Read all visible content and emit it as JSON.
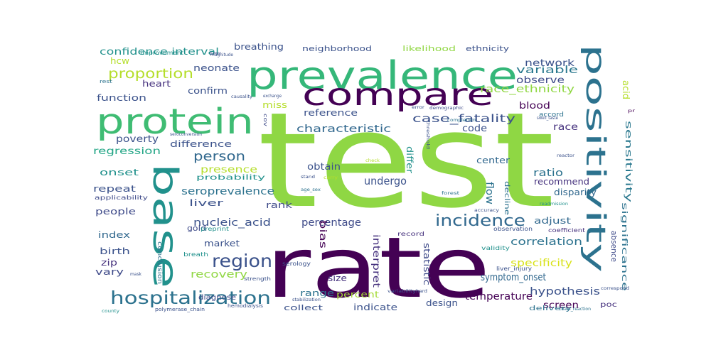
{
  "words": [
    {
      "text": "test",
      "color": "#8fd744"
    },
    {
      "text": "rate",
      "color": "#440154"
    },
    {
      "text": "prevalence",
      "color": "#35b779"
    },
    {
      "text": "compare",
      "color": "#440154"
    },
    {
      "text": "protein",
      "color": "#3fbc73"
    },
    {
      "text": "base",
      "color": "#21918c"
    },
    {
      "text": "positivity",
      "color": "#2c728e"
    },
    {
      "text": "hospitalization",
      "color": "#2c728e"
    },
    {
      "text": "region",
      "color": "#3b528b"
    },
    {
      "text": "incidence",
      "color": "#31688e"
    },
    {
      "text": "person",
      "color": "#31688e"
    },
    {
      "text": "proportion",
      "color": "#b5de2b"
    },
    {
      "text": "confidence interval",
      "color": "#21918c"
    },
    {
      "text": "race_ethnicity",
      "color": "#90d743"
    },
    {
      "text": "case_fatality",
      "color": "#3b528b"
    },
    {
      "text": "characteristic",
      "color": "#31688e"
    },
    {
      "text": "hypothesis",
      "color": "#3b528b"
    },
    {
      "text": "correlation",
      "color": "#2c728e"
    },
    {
      "text": "specificity",
      "color": "#d8e219"
    },
    {
      "text": "seroprevalence",
      "color": "#2c728e"
    },
    {
      "text": "nucleic_acid",
      "color": "#3b528b"
    },
    {
      "text": "percentage",
      "color": "#3e4a89"
    },
    {
      "text": "symptom_onset",
      "color": "#31688e"
    },
    {
      "text": "temperature",
      "color": "#440154"
    },
    {
      "text": "sensitivity",
      "color": "#2a788e"
    },
    {
      "text": "significance",
      "color": "#2c728e"
    },
    {
      "text": "variable",
      "color": "#2a788e"
    },
    {
      "text": "network",
      "color": "#3b528b"
    },
    {
      "text": "observe",
      "color": "#3e4a89"
    },
    {
      "text": "blood",
      "color": "#440154"
    },
    {
      "text": "race",
      "color": "#46327e"
    },
    {
      "text": "code",
      "color": "#3b528b"
    },
    {
      "text": "difference",
      "color": "#3b528b"
    },
    {
      "text": "poverty",
      "color": "#3b528b"
    },
    {
      "text": "regression",
      "color": "#21a585"
    },
    {
      "text": "presence",
      "color": "#b5de2b"
    },
    {
      "text": "probability",
      "color": "#21918c"
    },
    {
      "text": "onset",
      "color": "#21918c"
    },
    {
      "text": "repeat",
      "color": "#3b528b"
    },
    {
      "text": "liver",
      "color": "#3b528b"
    },
    {
      "text": "rank",
      "color": "#3e4a89"
    },
    {
      "text": "people",
      "color": "#3e4a89"
    },
    {
      "text": "index",
      "color": "#31688e"
    },
    {
      "text": "birth",
      "color": "#3b528b"
    },
    {
      "text": "vary",
      "color": "#3e4a89"
    },
    {
      "text": "zip",
      "color": "#46327e"
    },
    {
      "text": "market",
      "color": "#3b528b"
    },
    {
      "text": "recovery",
      "color": "#90d743"
    },
    {
      "text": "range",
      "color": "#2c728e"
    },
    {
      "text": "percent",
      "color": "#a5db36"
    },
    {
      "text": "indicate",
      "color": "#3b528b"
    },
    {
      "text": "design",
      "color": "#3b528b"
    },
    {
      "text": "screen",
      "color": "#440154"
    },
    {
      "text": "delivery",
      "color": "#2c728e"
    },
    {
      "text": "poc",
      "color": "#46327e"
    },
    {
      "text": "center",
      "color": "#31688e"
    },
    {
      "text": "ratio",
      "color": "#2c728e"
    },
    {
      "text": "recommend",
      "color": "#46327e"
    },
    {
      "text": "disparity",
      "color": "#31688e"
    },
    {
      "text": "adjust",
      "color": "#31688e"
    },
    {
      "text": "undergo",
      "color": "#3b528b"
    },
    {
      "text": "obtain",
      "color": "#3b528b"
    },
    {
      "text": "reference",
      "color": "#3b528b"
    },
    {
      "text": "function",
      "color": "#3b528b"
    },
    {
      "text": "confirm",
      "color": "#3b528b"
    },
    {
      "text": "heart",
      "color": "#46327e"
    },
    {
      "text": "neonate",
      "color": "#3b528b"
    },
    {
      "text": "miss",
      "color": "#b5de2b"
    },
    {
      "text": "hcw",
      "color": "#b5de2b"
    },
    {
      "text": "breathing",
      "color": "#3b528b"
    },
    {
      "text": "neighborhood",
      "color": "#3b528b"
    },
    {
      "text": "likelihood",
      "color": "#90d743"
    },
    {
      "text": "ethnicity",
      "color": "#3b528b"
    },
    {
      "text": "accord",
      "color": "#2c728e"
    },
    {
      "text": "acid",
      "color": "#b5de2b"
    },
    {
      "text": "flow",
      "color": "#2c728e"
    },
    {
      "text": "differ",
      "color": "#21918c"
    },
    {
      "text": "interpret",
      "color": "#46327e"
    },
    {
      "text": "statistic",
      "color": "#3e4a89"
    },
    {
      "text": "bias",
      "color": "#440154"
    },
    {
      "text": "size",
      "color": "#46327e"
    },
    {
      "text": "collect",
      "color": "#3b528b"
    },
    {
      "text": "absence",
      "color": "#3e4a89"
    },
    {
      "text": "gold",
      "color": "#3e4a89"
    },
    {
      "text": "improvement",
      "color": "#21918c"
    },
    {
      "text": "decline",
      "color": "#2c728e"
    },
    {
      "text": "applicability",
      "color": "#3e4a89"
    },
    {
      "text": "diagnose",
      "color": "#3e4a89"
    },
    {
      "text": "breath",
      "color": "#21918c"
    },
    {
      "text": "preprint",
      "color": "#21918c"
    },
    {
      "text": "conclusion",
      "color": "#2c728e"
    },
    {
      "text": "serology",
      "color": "#3b528b"
    },
    {
      "text": "validity",
      "color": "#21918c"
    },
    {
      "text": "record",
      "color": "#46327e"
    },
    {
      "text": "observation",
      "color": "#3b528b"
    },
    {
      "text": "coefficient",
      "color": "#46327e"
    },
    {
      "text": "liver_injury",
      "color": "#3b528b"
    },
    {
      "text": "strength",
      "color": "#3b528b"
    },
    {
      "text": "county",
      "color": "#21918c"
    },
    {
      "text": "polymerase_chain",
      "color": "#3b528b"
    },
    {
      "text": "hemodialysis",
      "color": "#3b528b"
    },
    {
      "text": "stabilization",
      "color": "#3b528b"
    },
    {
      "text": "forest",
      "color": "#2c728e"
    },
    {
      "text": "stand",
      "color": "#3b528b"
    },
    {
      "text": "carry",
      "color": "#b5de2b"
    },
    {
      "text": "check",
      "color": "#b5de2b"
    },
    {
      "text": "variability",
      "color": "#3b528b"
    },
    {
      "text": "demographic",
      "color": "#3e4a89"
    },
    {
      "text": "threshold",
      "color": "#3b528b"
    },
    {
      "text": "completion",
      "color": "#2c728e"
    },
    {
      "text": "swell_taste",
      "color": "#3b528b"
    },
    {
      "text": "accuracy",
      "color": "#3b528b"
    },
    {
      "text": "readmission",
      "color": "#21918c"
    },
    {
      "text": "chain_reaction",
      "color": "#2c728e"
    },
    {
      "text": "seroconversion",
      "color": "#3b528b"
    },
    {
      "text": "cov",
      "color": "#3e4a89"
    },
    {
      "text": "rest",
      "color": "#2c728e"
    },
    {
      "text": "mask",
      "color": "#3b528b"
    },
    {
      "text": "error",
      "color": "#3b528b"
    },
    {
      "text": "magnitude",
      "color": "#3b528b"
    },
    {
      "text": "exchange",
      "color": "#3b528b"
    },
    {
      "text": "causality",
      "color": "#3b528b"
    },
    {
      "text": "tumor",
      "color": "#3e4a89"
    },
    {
      "text": "hard",
      "color": "#3b528b"
    },
    {
      "text": "correspond",
      "color": "#3b528b"
    },
    {
      "text": "age_sex",
      "color": "#2c728e"
    },
    {
      "text": "reactor",
      "color": "#3b528b"
    },
    {
      "text": "pr",
      "color": "#440154"
    }
  ]
}
